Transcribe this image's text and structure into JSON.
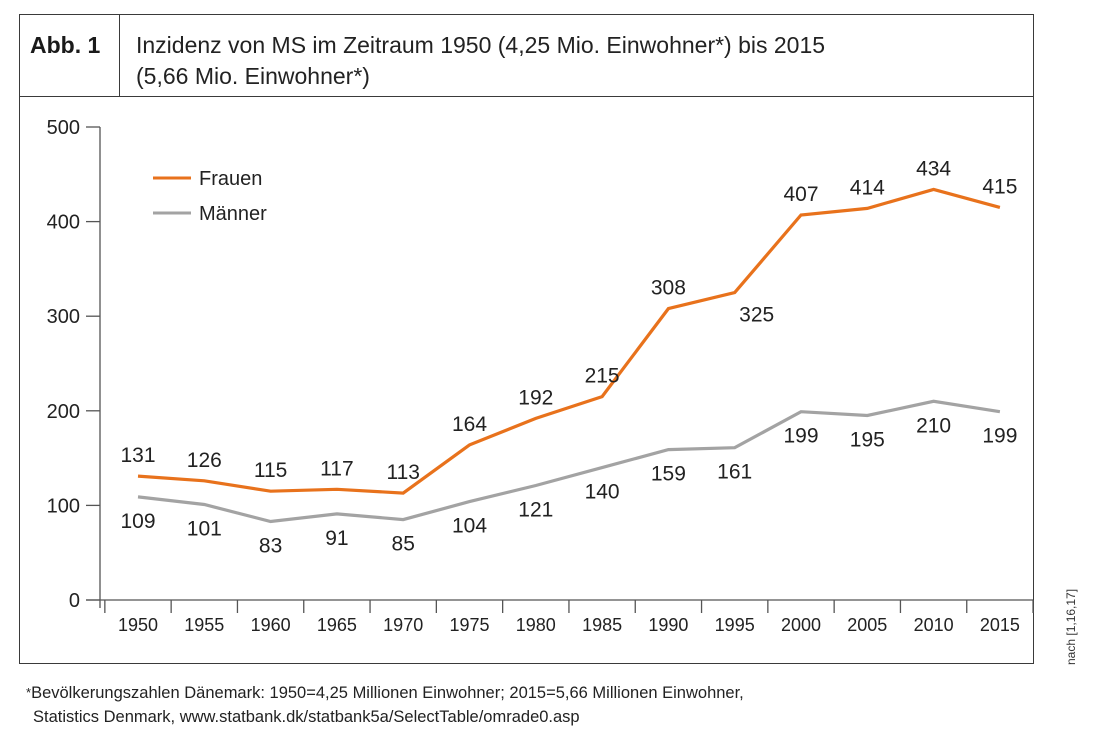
{
  "figure": {
    "label": "Abb. 1",
    "title_line1": "Inzidenz von MS im Zeitraum 1950 (4,25 Mio. Einwohner*) bis 2015",
    "title_line2": "(5,66 Mio. Einwohner*)"
  },
  "source_note": "nach [1,16,17]",
  "footnote": {
    "marker": "*",
    "line1": "Bevölkerungszahlen Dänemark: 1950=4,25 Millionen Einwohner; 2015=5,66 Millionen Einwohner,",
    "line2": "Statistics Denmark, www.statbank.dk/statbank5a/SelectTable/omrade0.asp"
  },
  "chart_data": {
    "type": "line",
    "title": "Inzidenz von MS im Zeitraum 1950 (4,25 Mio. Einwohner*) bis 2015 (5,66 Mio. Einwohner*)",
    "xlabel": "",
    "ylabel": "",
    "categories": [
      "1950",
      "1955",
      "1960",
      "1965",
      "1970",
      "1975",
      "1980",
      "1985",
      "1990",
      "1995",
      "2000",
      "2005",
      "2010",
      "2015"
    ],
    "ylim": [
      0,
      500
    ],
    "yticks": [
      0,
      100,
      200,
      300,
      400,
      500
    ],
    "grid": false,
    "legend_position": "top-left",
    "series": [
      {
        "name": "Frauen",
        "color": "#e8721c",
        "values": [
          131,
          126,
          115,
          117,
          113,
          164,
          192,
          215,
          308,
          325,
          407,
          414,
          434,
          415
        ],
        "label_side": [
          "above",
          "above",
          "above",
          "above",
          "above",
          "above",
          "above",
          "above",
          "above",
          "below-right",
          "above",
          "above",
          "above",
          "above"
        ]
      },
      {
        "name": "Männer",
        "color": "#a3a3a3",
        "values": [
          109,
          101,
          83,
          91,
          85,
          104,
          121,
          140,
          159,
          161,
          199,
          195,
          210,
          199
        ],
        "label_side": [
          "below",
          "below",
          "below",
          "below",
          "below",
          "below",
          "below",
          "below",
          "below",
          "below",
          "below",
          "below",
          "below",
          "below"
        ]
      }
    ]
  }
}
